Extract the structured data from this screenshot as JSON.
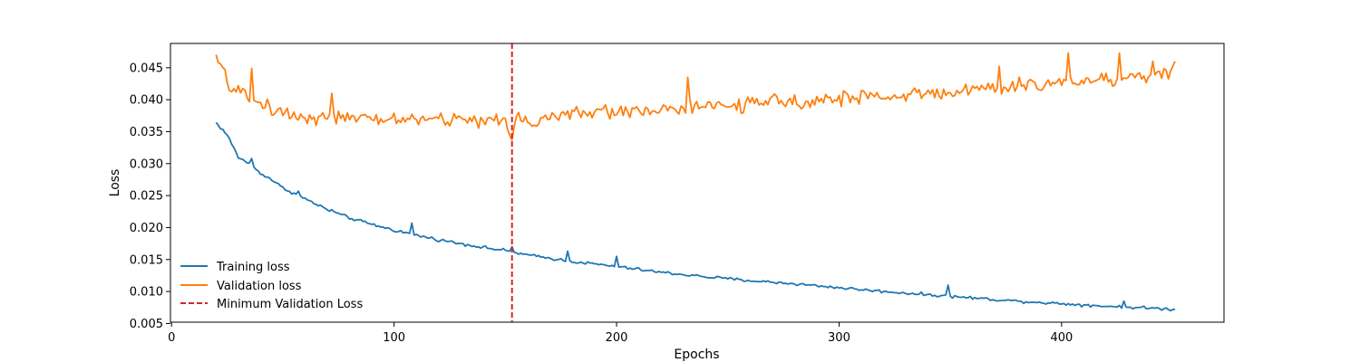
{
  "chart_data": {
    "type": "line",
    "xlabel": "Epochs",
    "ylabel": "Loss",
    "xlim": [
      -0.5,
      473
    ],
    "ylim": [
      0.0052,
      0.0488
    ],
    "xticks": [
      0,
      100,
      200,
      300,
      400
    ],
    "yticks": [
      0.005,
      0.01,
      0.015,
      0.02,
      0.025,
      0.03,
      0.035,
      0.04,
      0.045
    ],
    "ytick_labels": [
      "0.005",
      "0.010",
      "0.015",
      "0.020",
      "0.025",
      "0.030",
      "0.035",
      "0.040",
      "0.045"
    ],
    "grid": false,
    "legend_position": "lower-left",
    "x_start": 20,
    "x_end": 451,
    "series": [
      {
        "name": "Training loss",
        "color": "#1f77b4",
        "anchors": [
          [
            20,
            0.0364
          ],
          [
            25,
            0.0345
          ],
          [
            30,
            0.031
          ],
          [
            35,
            0.03
          ],
          [
            40,
            0.0285
          ],
          [
            45,
            0.0275
          ],
          [
            50,
            0.0262
          ],
          [
            60,
            0.0245
          ],
          [
            70,
            0.0228
          ],
          [
            80,
            0.0215
          ],
          [
            90,
            0.0205
          ],
          [
            100,
            0.0196
          ],
          [
            110,
            0.0188
          ],
          [
            120,
            0.0181
          ],
          [
            130,
            0.0175
          ],
          [
            140,
            0.0169
          ],
          [
            150,
            0.0164
          ],
          [
            153,
            0.0162
          ],
          [
            160,
            0.0157
          ],
          [
            170,
            0.0152
          ],
          [
            180,
            0.0147
          ],
          [
            190,
            0.0143
          ],
          [
            200,
            0.0139
          ],
          [
            220,
            0.013
          ],
          [
            240,
            0.0123
          ],
          [
            260,
            0.0117
          ],
          [
            280,
            0.0112
          ],
          [
            300,
            0.0106
          ],
          [
            320,
            0.01
          ],
          [
            340,
            0.0095
          ],
          [
            360,
            0.009
          ],
          [
            380,
            0.0085
          ],
          [
            400,
            0.0081
          ],
          [
            420,
            0.0077
          ],
          [
            440,
            0.0074
          ],
          [
            451,
            0.0072
          ]
        ],
        "noise": 0.00035,
        "spikes": [
          [
            36,
            0.0308
          ],
          [
            57,
            0.0257
          ],
          [
            72,
            0.0228
          ],
          [
            108,
            0.0207
          ],
          [
            153,
            0.017
          ],
          [
            178,
            0.0163
          ],
          [
            200,
            0.0155
          ],
          [
            349,
            0.011
          ],
          [
            428,
            0.0085
          ]
        ]
      },
      {
        "name": "Validation loss",
        "color": "#ff7f0e",
        "anchors": [
          [
            20,
            0.0462
          ],
          [
            22,
            0.0455
          ],
          [
            25,
            0.0425
          ],
          [
            30,
            0.0415
          ],
          [
            35,
            0.04
          ],
          [
            40,
            0.0395
          ],
          [
            50,
            0.038
          ],
          [
            60,
            0.0372
          ],
          [
            70,
            0.0375
          ],
          [
            80,
            0.037
          ],
          [
            90,
            0.0368
          ],
          [
            100,
            0.037
          ],
          [
            110,
            0.037
          ],
          [
            120,
            0.0368
          ],
          [
            130,
            0.037
          ],
          [
            140,
            0.0368
          ],
          [
            150,
            0.0365
          ],
          [
            153,
            0.0345
          ],
          [
            155,
            0.0378
          ],
          [
            160,
            0.0365
          ],
          [
            170,
            0.0372
          ],
          [
            180,
            0.0378
          ],
          [
            190,
            0.038
          ],
          [
            200,
            0.0382
          ],
          [
            220,
            0.0385
          ],
          [
            240,
            0.0388
          ],
          [
            260,
            0.0393
          ],
          [
            280,
            0.0398
          ],
          [
            300,
            0.0402
          ],
          [
            320,
            0.0405
          ],
          [
            340,
            0.041
          ],
          [
            360,
            0.0415
          ],
          [
            380,
            0.042
          ],
          [
            400,
            0.0428
          ],
          [
            420,
            0.0432
          ],
          [
            440,
            0.0438
          ],
          [
            451,
            0.0445
          ]
        ],
        "noise": 0.0017,
        "spikes": [
          [
            36,
            0.0449
          ],
          [
            72,
            0.041
          ],
          [
            153,
            0.0337
          ],
          [
            232,
            0.0435
          ],
          [
            372,
            0.0452
          ],
          [
            403,
            0.0473
          ],
          [
            426,
            0.0473
          ],
          [
            441,
            0.046
          ],
          [
            451,
            0.046
          ]
        ]
      }
    ],
    "vline": {
      "name": "Minimum Validation Loss",
      "x": 153,
      "color": "#d62728",
      "style": "dashed"
    }
  }
}
